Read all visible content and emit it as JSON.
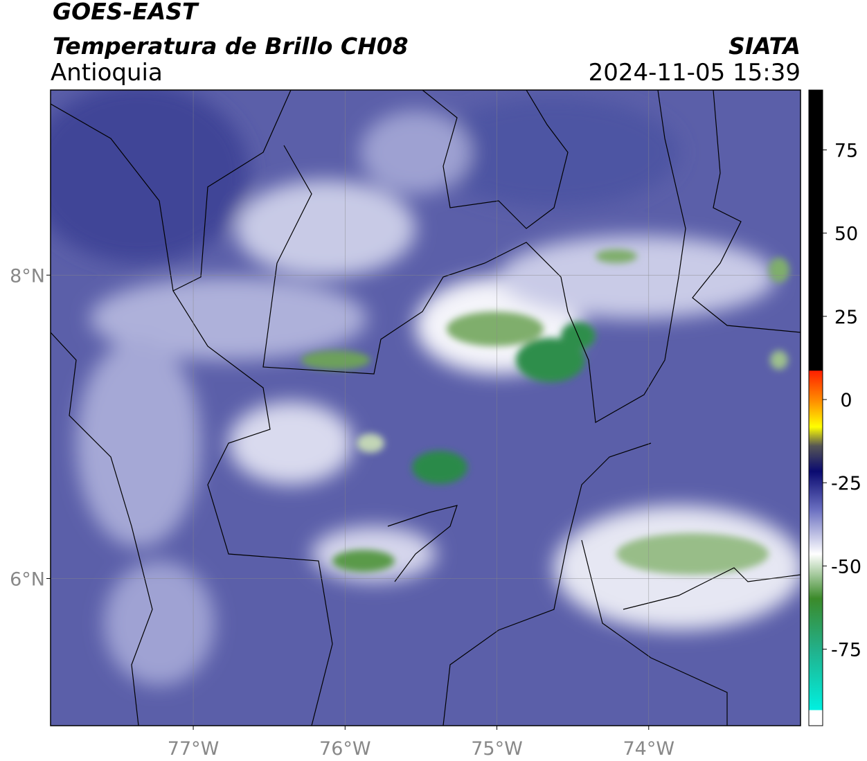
{
  "header": {
    "satellite": "GOES-EAST",
    "product": "Temperatura de Brillo CH08",
    "region": "Antioquia",
    "source": "SIATA",
    "datetime": "2024-11-05 15:39"
  },
  "map": {
    "lon_range": [
      -77.94,
      -73.0
    ],
    "lat_range": [
      5.03,
      9.22
    ],
    "lon_ticks": [
      {
        "value": -77,
        "label": "77°W"
      },
      {
        "value": -76,
        "label": "76°W"
      },
      {
        "value": -75,
        "label": "75°W"
      },
      {
        "value": -74,
        "label": "74°W"
      }
    ],
    "lat_ticks": [
      {
        "value": 8,
        "label": "8°N"
      },
      {
        "value": 6,
        "label": "6°N"
      }
    ]
  },
  "colorbar": {
    "range": [
      -98,
      93
    ],
    "ticks": [
      75,
      50,
      25,
      0,
      -25,
      -50,
      -75
    ]
  }
}
